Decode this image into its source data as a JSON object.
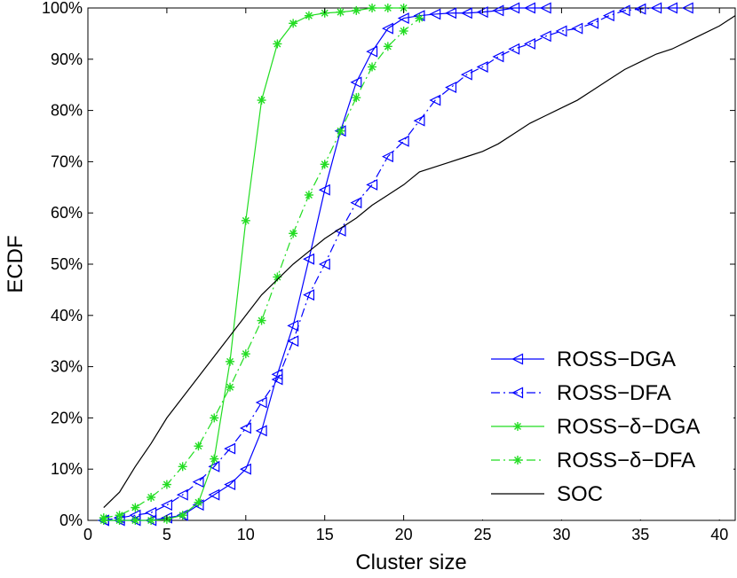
{
  "chart_data": {
    "type": "line",
    "xlabel": "Cluster size",
    "ylabel": "ECDF",
    "xlim": [
      0,
      41
    ],
    "ylim": [
      0,
      1
    ],
    "x_ticks": [
      0,
      5,
      10,
      15,
      20,
      25,
      30,
      35,
      40
    ],
    "y_ticks": [
      0,
      0.1,
      0.2,
      0.3,
      0.4,
      0.5,
      0.6,
      0.7,
      0.8,
      0.9,
      1.0
    ],
    "y_tick_labels": [
      "0%",
      "10%",
      "20%",
      "30%",
      "40%",
      "50%",
      "60%",
      "70%",
      "80%",
      "90%",
      "100%"
    ],
    "grid": false,
    "legend_position": "bottom-right",
    "series": [
      {
        "name": "ROSS−DGA",
        "color": "#0000ff",
        "line_style": "solid",
        "marker": "triangle-left",
        "x": [
          1,
          2,
          3,
          4,
          5,
          6,
          7,
          8,
          9,
          10,
          11,
          12,
          13,
          14,
          15,
          16,
          17,
          18,
          19,
          20,
          21,
          22,
          23,
          24,
          25,
          26,
          27,
          28,
          29
        ],
        "y": [
          0.0,
          0.0,
          0.0,
          0.0,
          0.005,
          0.01,
          0.03,
          0.05,
          0.07,
          0.1,
          0.175,
          0.285,
          0.38,
          0.51,
          0.645,
          0.76,
          0.855,
          0.915,
          0.96,
          0.98,
          0.985,
          0.988,
          0.99,
          0.99,
          0.992,
          0.995,
          1.0,
          1.0,
          1.0
        ]
      },
      {
        "name": "ROSS−DFA",
        "color": "#0000ff",
        "line_style": "dashdot",
        "marker": "triangle-left",
        "x": [
          1,
          2,
          3,
          4,
          5,
          6,
          7,
          8,
          9,
          10,
          11,
          12,
          13,
          14,
          15,
          16,
          17,
          18,
          19,
          20,
          21,
          22,
          23,
          24,
          25,
          26,
          27,
          28,
          29,
          30,
          31,
          32,
          33,
          34,
          35,
          36,
          37,
          38
        ],
        "y": [
          0.0,
          0.005,
          0.01,
          0.015,
          0.03,
          0.05,
          0.075,
          0.105,
          0.14,
          0.18,
          0.23,
          0.275,
          0.35,
          0.44,
          0.5,
          0.565,
          0.62,
          0.655,
          0.71,
          0.74,
          0.78,
          0.82,
          0.845,
          0.87,
          0.885,
          0.905,
          0.92,
          0.93,
          0.945,
          0.955,
          0.96,
          0.97,
          0.985,
          0.995,
          0.998,
          1.0,
          1.0,
          1.0
        ]
      },
      {
        "name": "ROSS−δ−DGA",
        "color": "#22dd22",
        "line_style": "solid",
        "marker": "asterisk",
        "x": [
          1,
          2,
          3,
          4,
          5,
          6,
          7,
          8,
          9,
          10,
          11,
          12,
          13,
          14,
          15,
          16,
          17,
          18,
          19,
          20
        ],
        "y": [
          0.0,
          0.0,
          0.0,
          0.0,
          0.002,
          0.01,
          0.035,
          0.12,
          0.31,
          0.585,
          0.82,
          0.93,
          0.97,
          0.985,
          0.99,
          0.992,
          0.995,
          1.0,
          1.0,
          1.0
        ]
      },
      {
        "name": "ROSS−δ−DFA",
        "color": "#22dd22",
        "line_style": "dashdot",
        "marker": "asterisk",
        "x": [
          1,
          2,
          3,
          4,
          5,
          6,
          7,
          8,
          9,
          10,
          11,
          12,
          13,
          14,
          15,
          16,
          17,
          18,
          19,
          20,
          21
        ],
        "y": [
          0.005,
          0.01,
          0.025,
          0.045,
          0.07,
          0.105,
          0.145,
          0.2,
          0.26,
          0.325,
          0.39,
          0.475,
          0.56,
          0.635,
          0.695,
          0.76,
          0.825,
          0.885,
          0.925,
          0.955,
          0.98
        ]
      },
      {
        "name": "SOC",
        "color": "#000000",
        "line_style": "solid",
        "marker": "none",
        "x": [
          1,
          2,
          3,
          4,
          5,
          6,
          7,
          8,
          9,
          10,
          11,
          12,
          13,
          14,
          15,
          16,
          17,
          18,
          19,
          20,
          21,
          22,
          23,
          24,
          25,
          26,
          27,
          28,
          29,
          30,
          31,
          32,
          33,
          34,
          35,
          36,
          37,
          38,
          39,
          40,
          41
        ],
        "y": [
          0.025,
          0.055,
          0.105,
          0.15,
          0.2,
          0.24,
          0.28,
          0.32,
          0.36,
          0.4,
          0.44,
          0.47,
          0.5,
          0.525,
          0.55,
          0.57,
          0.59,
          0.615,
          0.635,
          0.655,
          0.68,
          0.69,
          0.7,
          0.71,
          0.72,
          0.735,
          0.755,
          0.775,
          0.79,
          0.805,
          0.82,
          0.84,
          0.86,
          0.88,
          0.895,
          0.91,
          0.92,
          0.935,
          0.95,
          0.965,
          0.985
        ]
      }
    ]
  }
}
